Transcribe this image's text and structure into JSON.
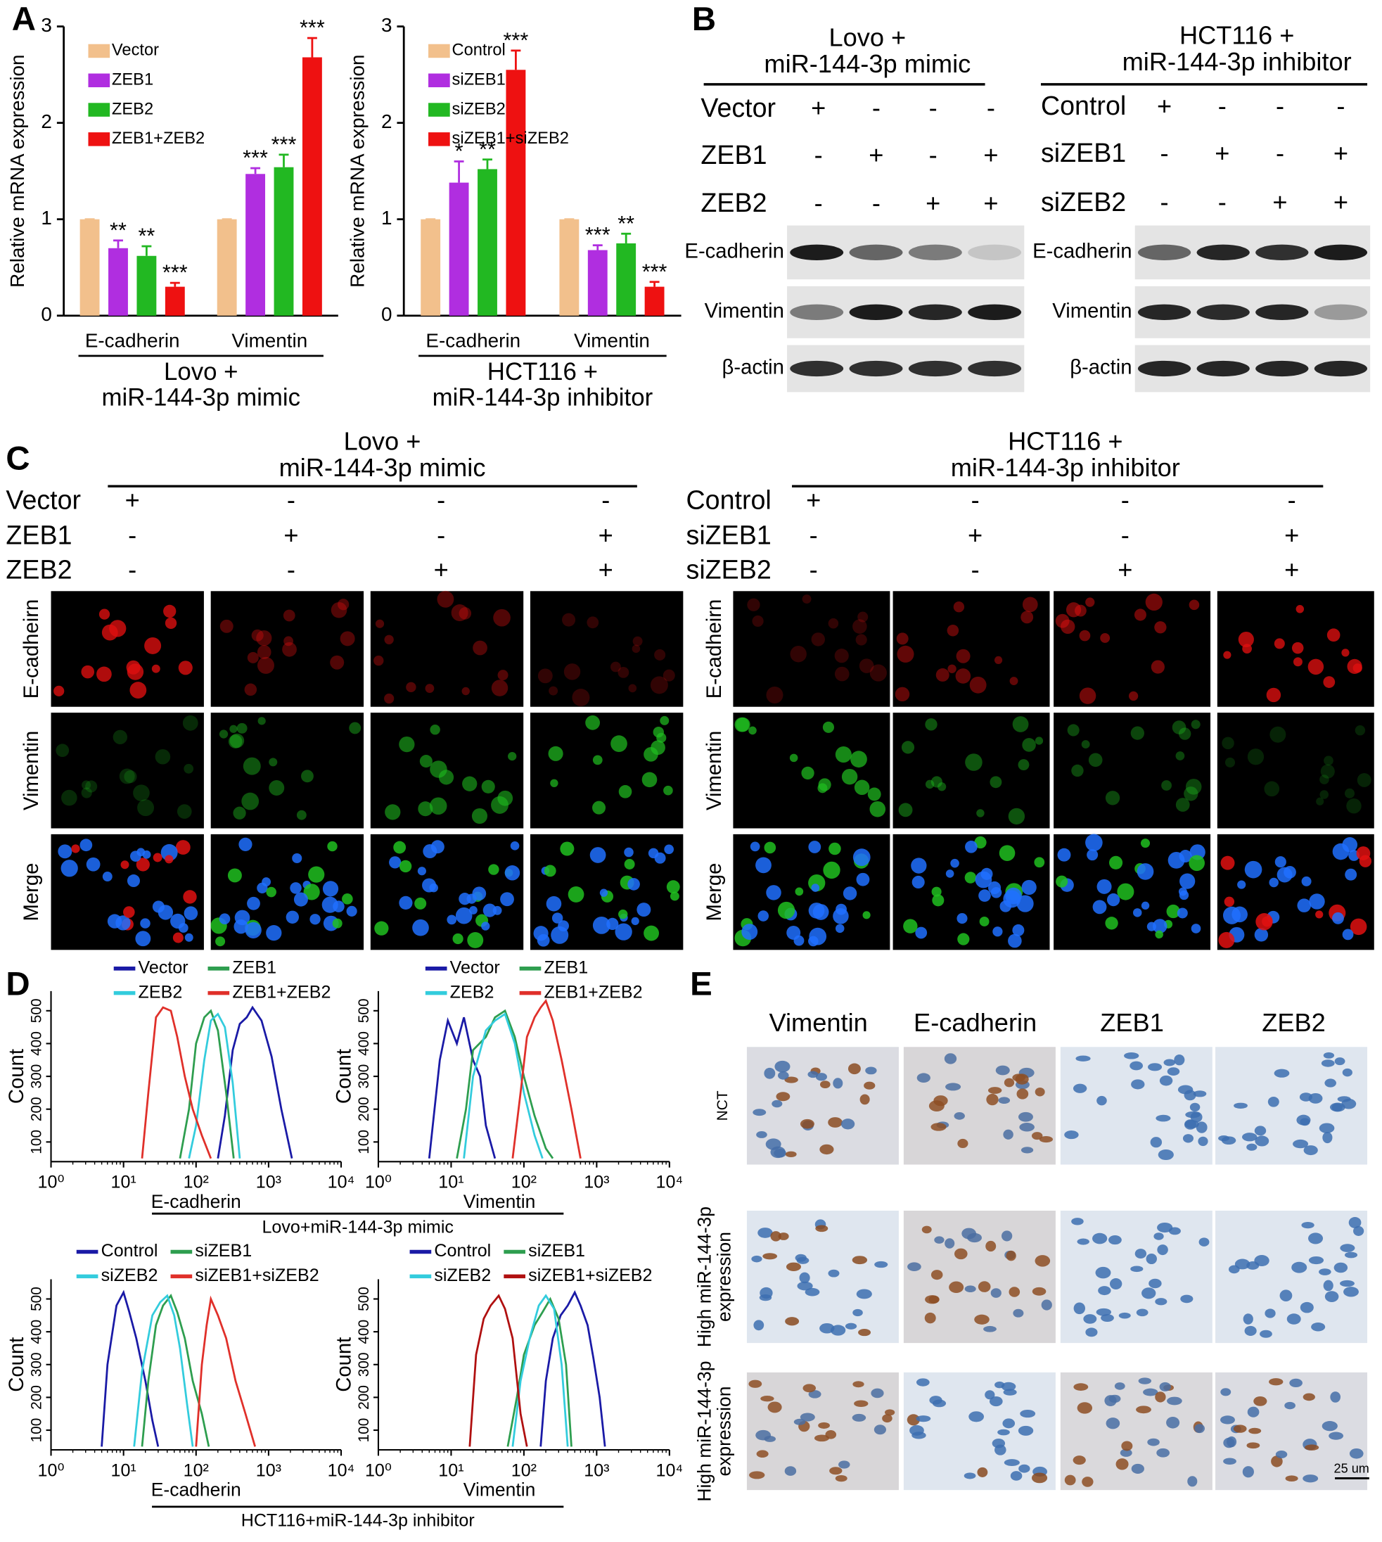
{
  "panel_letters": [
    "A",
    "B",
    "C",
    "D",
    "E"
  ],
  "chart_data": [
    {
      "type": "bar",
      "ylabel": "Relative mRNA expression",
      "categories": [
        "E-cadherin",
        "Vimentin"
      ],
      "xlabel_lines": [
        "Lovo +",
        "miR-144-3p mimic"
      ],
      "ylim": [
        0,
        3
      ],
      "yticks": [
        0,
        1,
        2,
        3
      ],
      "legend": "upper left",
      "series": [
        {
          "name": "Vector",
          "color": "#f2c08c",
          "values": [
            1,
            1
          ],
          "errors": [
            0,
            0
          ]
        },
        {
          "name": "ZEB1",
          "color": "#b02ee0",
          "values": [
            0.7,
            1.47
          ],
          "errors": [
            0.08,
            0.06
          ],
          "stars": [
            "**",
            "***"
          ]
        },
        {
          "name": "ZEB2",
          "color": "#22b822",
          "values": [
            0.62,
            1.54
          ],
          "errors": [
            0.1,
            0.13
          ],
          "stars": [
            "**",
            "***"
          ]
        },
        {
          "name": "ZEB1+ZEB2",
          "color": "#ee1111",
          "values": [
            0.3,
            2.68
          ],
          "errors": [
            0.04,
            0.2
          ],
          "stars": [
            "***",
            "***"
          ]
        }
      ]
    },
    {
      "type": "bar",
      "ylabel": "Relative mRNA expression",
      "categories": [
        "E-cadherin",
        "Vimentin"
      ],
      "xlabel_lines": [
        "HCT116 +",
        "miR-144-3p inhibitor"
      ],
      "ylim": [
        0,
        3
      ],
      "yticks": [
        0,
        1,
        2,
        3
      ],
      "legend": "upper left",
      "series": [
        {
          "name": "Control",
          "color": "#f2c08c",
          "values": [
            1,
            1
          ],
          "errors": [
            0,
            0
          ]
        },
        {
          "name": "siZEB1",
          "color": "#b02ee0",
          "values": [
            1.38,
            0.68
          ],
          "errors": [
            0.22,
            0.05
          ],
          "stars": [
            "*",
            "***"
          ]
        },
        {
          "name": "siZEB2",
          "color": "#22b822",
          "values": [
            1.52,
            0.75
          ],
          "errors": [
            0.1,
            0.1
          ],
          "stars": [
            "**",
            "**"
          ]
        },
        {
          "name": "siZEB1+siZEB2",
          "color": "#ee1111",
          "values": [
            2.55,
            0.3
          ],
          "errors": [
            0.2,
            0.05
          ],
          "stars": [
            "***",
            "***"
          ]
        }
      ]
    },
    {
      "type": "line",
      "xscale": "log",
      "ylabel": "Count",
      "xlabel": "E-cadherin",
      "xlim": [
        1,
        10000
      ],
      "ylim": [
        40,
        560
      ],
      "xticks": [
        {
          "value": 1,
          "label": "10⁰"
        },
        {
          "value": 10,
          "label": "10¹"
        },
        {
          "value": 100,
          "label": "10²"
        },
        {
          "value": 1000,
          "label": "10³"
        },
        {
          "value": 10000,
          "label": "10⁴"
        }
      ],
      "yticks": [
        100,
        200,
        300,
        400,
        500
      ],
      "legend": "top",
      "series": [
        {
          "name": "Vector",
          "color": "#1a1aa6",
          "x": [
            200,
            250,
            320,
            400,
            500,
            600,
            800,
            1100,
            1500,
            2100
          ],
          "values": [
            50,
            180,
            380,
            460,
            480,
            510,
            470,
            360,
            200,
            50
          ]
        },
        {
          "name": "ZEB1",
          "color": "#2e9e4f",
          "x": [
            60,
            80,
            100,
            130,
            160,
            200,
            260,
            330
          ],
          "values": [
            50,
            200,
            400,
            480,
            500,
            440,
            250,
            50
          ]
        },
        {
          "name": "ZEB2",
          "color": "#33ccdd",
          "x": [
            80,
            100,
            130,
            160,
            200,
            250,
            320,
            400
          ],
          "values": [
            50,
            150,
            350,
            470,
            490,
            450,
            280,
            50
          ]
        },
        {
          "name": "ZEB1+ZEB2",
          "color": "#e0302a",
          "x": [
            18,
            22,
            28,
            35,
            45,
            55,
            70,
            90,
            120,
            160
          ],
          "values": [
            50,
            250,
            480,
            510,
            500,
            420,
            300,
            200,
            120,
            50
          ]
        }
      ]
    },
    {
      "type": "line",
      "xscale": "log",
      "ylabel": "Count",
      "xlabel": "Vimentin",
      "xlim": [
        1,
        10000
      ],
      "ylim": [
        40,
        560
      ],
      "xticks": [
        {
          "value": 1,
          "label": "10⁰"
        },
        {
          "value": 10,
          "label": "10¹"
        },
        {
          "value": 100,
          "label": "10²"
        },
        {
          "value": 1000,
          "label": "10³"
        },
        {
          "value": 10000,
          "label": "10⁴"
        }
      ],
      "yticks": [
        100,
        200,
        300,
        400,
        500
      ],
      "legend": "top",
      "series": [
        {
          "name": "Vector",
          "color": "#1a1aa6",
          "x": [
            5,
            7,
            9,
            12,
            15,
            20,
            25,
            30,
            40
          ],
          "values": [
            50,
            350,
            470,
            400,
            480,
            350,
            300,
            150,
            50
          ]
        },
        {
          "name": "ZEB1",
          "color": "#2e9e4f",
          "x": [
            12,
            16,
            20,
            30,
            40,
            55,
            75,
            100,
            140,
            200,
            250
          ],
          "values": [
            50,
            200,
            380,
            420,
            480,
            500,
            420,
            300,
            180,
            80,
            50
          ]
        },
        {
          "name": "ZEB2",
          "color": "#33ccdd",
          "x": [
            15,
            20,
            30,
            40,
            55,
            75,
            100,
            140,
            180
          ],
          "values": [
            50,
            300,
            440,
            470,
            490,
            400,
            250,
            120,
            50
          ]
        },
        {
          "name": "ZEB1+ZEB2",
          "color": "#e0302a",
          "x": [
            70,
            90,
            110,
            140,
            170,
            200,
            250,
            330,
            450,
            600
          ],
          "values": [
            50,
            250,
            420,
            480,
            510,
            530,
            470,
            350,
            200,
            50
          ]
        }
      ]
    },
    {
      "type": "line",
      "xscale": "log",
      "ylabel": "Count",
      "xlabel": "E-cadherin",
      "xlim": [
        1,
        10000
      ],
      "ylim": [
        40,
        560
      ],
      "xticks": [
        {
          "value": 1,
          "label": "10⁰"
        },
        {
          "value": 10,
          "label": "10¹"
        },
        {
          "value": 100,
          "label": "10²"
        },
        {
          "value": 1000,
          "label": "10³"
        },
        {
          "value": 10000,
          "label": "10⁴"
        }
      ],
      "yticks": [
        100,
        200,
        300,
        400,
        500
      ],
      "legend": "top",
      "series": [
        {
          "name": "Control",
          "color": "#1a1aa6",
          "x": [
            5,
            6,
            8,
            10,
            12,
            15,
            20,
            25,
            30
          ],
          "values": [
            50,
            300,
            480,
            520,
            460,
            380,
            250,
            130,
            50
          ]
        },
        {
          "name": "siZEB1",
          "color": "#2e9e4f",
          "x": [
            18,
            22,
            28,
            35,
            45,
            55,
            70,
            90,
            120,
            150
          ],
          "values": [
            50,
            250,
            420,
            480,
            510,
            460,
            380,
            250,
            150,
            50
          ]
        },
        {
          "name": "siZEB2",
          "color": "#33ccdd",
          "x": [
            14,
            18,
            25,
            32,
            40,
            50,
            60,
            75,
            90
          ],
          "values": [
            50,
            280,
            450,
            490,
            510,
            450,
            350,
            180,
            50
          ]
        },
        {
          "name": "siZEB1+siZEB2",
          "color": "#e0302a",
          "x": [
            100,
            120,
            140,
            160,
            200,
            260,
            350,
            480,
            650
          ],
          "values": [
            50,
            300,
            420,
            500,
            450,
            380,
            250,
            150,
            50
          ]
        }
      ]
    },
    {
      "type": "line",
      "xscale": "log",
      "ylabel": "Count",
      "xlabel": "Vimentin",
      "xlim": [
        1,
        10000
      ],
      "ylim": [
        40,
        560
      ],
      "xticks": [
        {
          "value": 1,
          "label": "10⁰"
        },
        {
          "value": 10,
          "label": "10¹"
        },
        {
          "value": 100,
          "label": "10²"
        },
        {
          "value": 1000,
          "label": "10³"
        },
        {
          "value": 10000,
          "label": "10⁴"
        }
      ],
      "yticks": [
        100,
        200,
        300,
        400,
        500
      ],
      "legend": "top",
      "series": [
        {
          "name": "Control",
          "color": "#1a1aa6",
          "x": [
            170,
            200,
            250,
            320,
            400,
            500,
            600,
            750,
            900,
            1100,
            1300
          ],
          "values": [
            50,
            250,
            380,
            450,
            480,
            520,
            480,
            420,
            320,
            200,
            50
          ]
        },
        {
          "name": "siZEB1",
          "color": "#2e9e4f",
          "x": [
            60,
            80,
            100,
            140,
            180,
            230,
            300,
            380,
            450
          ],
          "values": [
            50,
            200,
            330,
            420,
            460,
            500,
            440,
            300,
            50
          ]
        },
        {
          "name": "siZEB2",
          "color": "#33ccdd",
          "x": [
            70,
            90,
            120,
            160,
            200,
            260,
            330,
            400
          ],
          "values": [
            50,
            250,
            380,
            480,
            510,
            470,
            300,
            50
          ]
        },
        {
          "name": "siZEB1+siZEB2",
          "color": "#b01010",
          "x": [
            18,
            22,
            28,
            35,
            45,
            55,
            70,
            90,
            110
          ],
          "values": [
            50,
            330,
            440,
            480,
            510,
            470,
            380,
            150,
            50
          ]
        }
      ]
    }
  ],
  "panel_D_captions": [
    "Lovo+miR-144-3p mimic",
    "HCT116+miR-144-3p inhibitor"
  ],
  "panel_B": {
    "groups": [
      {
        "title_lines": [
          "Lovo +",
          "miR-144-3p mimic"
        ],
        "rows": [
          {
            "label": "Vector",
            "signs": [
              "+",
              "-",
              "-",
              "-"
            ]
          },
          {
            "label": "ZEB1",
            "signs": [
              "-",
              "+",
              "-",
              "+"
            ]
          },
          {
            "label": "ZEB2",
            "signs": [
              "-",
              "-",
              "+",
              "+"
            ]
          }
        ]
      },
      {
        "title_lines": [
          "HCT116 +",
          "miR-144-3p inhibitor"
        ],
        "rows": [
          {
            "label": "Control",
            "signs": [
              "+",
              "-",
              "-",
              "-"
            ]
          },
          {
            "label": "siZEB1",
            "signs": [
              "-",
              "+",
              "-",
              "+"
            ]
          },
          {
            "label": "siZEB2",
            "signs": [
              "-",
              "-",
              "+",
              "+"
            ]
          }
        ]
      }
    ],
    "blots": [
      "E-cadherin",
      "Vimentin",
      "β-actin"
    ]
  },
  "panel_C": {
    "groups": [
      {
        "title_lines": [
          "Lovo +",
          "miR-144-3p mimic"
        ],
        "rows": [
          {
            "label": "Vector",
            "signs": [
              "+",
              "-",
              "-",
              "-"
            ]
          },
          {
            "label": "ZEB1",
            "signs": [
              "-",
              "+",
              "-",
              "+"
            ]
          },
          {
            "label": "ZEB2",
            "signs": [
              "-",
              "-",
              "+",
              "+"
            ]
          }
        ]
      },
      {
        "title_lines": [
          "HCT116 +",
          "miR-144-3p inhibitor"
        ],
        "rows": [
          {
            "label": "Control",
            "signs": [
              "+",
              "-",
              "-",
              "-"
            ]
          },
          {
            "label": "siZEB1",
            "signs": [
              "-",
              "+",
              "-",
              "+"
            ]
          },
          {
            "label": "siZEB2",
            "signs": [
              "-",
              "-",
              "+",
              "+"
            ]
          }
        ]
      }
    ],
    "image_rows": [
      "E-cadheirn",
      "Vimentin",
      "Merge"
    ]
  },
  "panel_E": {
    "columns": [
      "Vimentin",
      "E-cadherin",
      "ZEB1",
      "ZEB2"
    ],
    "rows": [
      [
        "NCT"
      ],
      [
        "High miR-144-3p",
        "expression"
      ],
      [
        "High miR-144-3p",
        "expression"
      ]
    ],
    "scale_bar": "25 um"
  }
}
